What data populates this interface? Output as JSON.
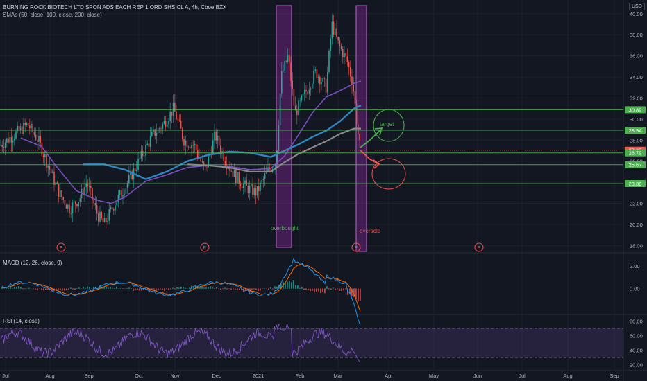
{
  "header": {
    "title": "BURNING ROCK BIOTECH LTD SPON ADS EACH REP 1 ORD SHS CL A, 4h, Cboe BZX",
    "sma_label": "SMAs (50, close, 100, close, 200, close)",
    "currency": "USD"
  },
  "colors": {
    "background": "#131722",
    "up": "#26a69a",
    "down": "#ef5350",
    "sma50": "#7b4fbf",
    "sma100": "#2e86c1",
    "sma200": "#8a8a8a",
    "hline": "#4caf50",
    "macd": "#2196f3",
    "signal": "#ff6d00",
    "rsi": "#7e57c2",
    "highlight": "#9c27b0"
  },
  "chart_data": [
    {
      "type": "candlestick",
      "title": "BURNING ROCK BIOTECH LTD SPON ADS EACH REP 1 ORD SHS CL A, 4h, Cboe BZX",
      "ylim": [
        17.5,
        41.3
      ],
      "y_ticks": [
        "40.00",
        "38.00",
        "36.00",
        "34.00",
        "32.00",
        "30.00",
        "28.00",
        "26.00",
        "24.00",
        "22.00",
        "20.00",
        "18.00"
      ],
      "x_ticks": [
        "Jul",
        "Aug",
        "Sep",
        "Oct",
        "Nov",
        "Dec",
        "2021",
        "Feb",
        "Mar",
        "Apr",
        "May",
        "Jun",
        "Jul",
        "Aug",
        "Sep"
      ],
      "horizontal_levels": [
        {
          "value": 30.89,
          "label": "30.89",
          "style": "solid"
        },
        {
          "value": 28.94,
          "label": "28.94",
          "style": "solid"
        },
        {
          "value": 27.05,
          "label": "27.05",
          "style": "dotted",
          "current": true
        },
        {
          "value": 26.79,
          "label": "26.79",
          "style": "solid"
        },
        {
          "value": 25.67,
          "label": "25.67",
          "style": "solid"
        },
        {
          "value": 23.88,
          "label": "23.88",
          "style": "solid"
        }
      ],
      "sma50": [
        [
          120,
          25.7
        ],
        [
          150,
          25.7
        ],
        [
          180,
          25.2
        ],
        [
          210,
          24.3
        ],
        [
          240,
          25.0
        ],
        [
          270,
          26.0
        ],
        [
          300,
          26.6
        ],
        [
          330,
          26.9
        ],
        [
          360,
          26.8
        ],
        [
          390,
          26.4
        ],
        [
          410,
          27.0
        ],
        [
          430,
          27.6
        ],
        [
          450,
          28.3
        ],
        [
          470,
          28.9
        ],
        [
          490,
          29.8
        ],
        [
          510,
          31.0
        ],
        [
          520,
          31.3
        ]
      ],
      "sma100": [
        [
          30,
          28.2
        ],
        [
          60,
          27.4
        ],
        [
          80,
          25.6
        ],
        [
          110,
          23.2
        ],
        [
          140,
          22.3
        ],
        [
          160,
          22.0
        ],
        [
          180,
          22.6
        ],
        [
          210,
          24.1
        ],
        [
          240,
          24.7
        ],
        [
          270,
          25.4
        ],
        [
          300,
          25.6
        ],
        [
          330,
          25.5
        ],
        [
          360,
          25.2
        ],
        [
          390,
          25.3
        ],
        [
          410,
          26.5
        ],
        [
          430,
          28.5
        ],
        [
          450,
          30.6
        ],
        [
          470,
          32.1
        ],
        [
          490,
          32.7
        ],
        [
          510,
          33.4
        ],
        [
          520,
          33.6
        ]
      ],
      "sma200": [
        [
          270,
          25.7
        ],
        [
          300,
          25.6
        ],
        [
          330,
          25.4
        ],
        [
          360,
          25.0
        ],
        [
          390,
          25.0
        ],
        [
          410,
          25.9
        ],
        [
          430,
          26.7
        ],
        [
          450,
          27.3
        ],
        [
          470,
          27.9
        ],
        [
          490,
          28.6
        ],
        [
          510,
          29.1
        ],
        [
          520,
          29.1
        ]
      ],
      "highlights": [
        {
          "from": "2021-01-20",
          "to": "2021-01-27",
          "label": "overbought",
          "color": "#4caf50"
        },
        {
          "from": "2021-03-12",
          "to": "2021-03-17",
          "label": "oversold",
          "color": "#ef5350"
        }
      ],
      "annotations": [
        {
          "text": "target",
          "color": "#4caf50"
        },
        {
          "text": "overbought",
          "color": "#4caf50"
        },
        {
          "text": "oversold",
          "color": "#ef5350"
        }
      ],
      "earnings_markers": [
        "E",
        "E",
        "E",
        "E"
      ]
    },
    {
      "type": "line",
      "title": "MACD (12, 26, close, 9)",
      "ylim": [
        -2.2,
        3.0
      ],
      "y_ticks": [
        "2.00",
        "0.00"
      ]
    },
    {
      "type": "line",
      "title": "RSI (14, close)",
      "ylim": [
        14,
        87
      ],
      "y_ticks": [
        "80.00",
        "60.00",
        "40.00",
        "20.00"
      ],
      "bands": [
        70,
        30
      ]
    }
  ]
}
